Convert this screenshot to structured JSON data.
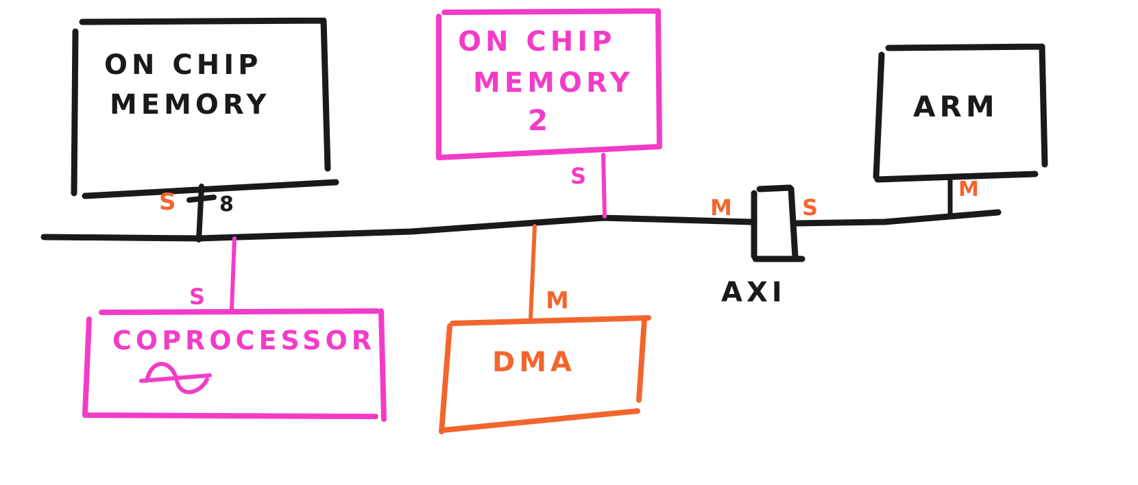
{
  "colors": {
    "black": "#1a1a1a",
    "pink": "#f23cc8",
    "orange": "#f2662e"
  },
  "blocks": {
    "onchip_memory": {
      "line1": "ON CHIP",
      "line2": "MEMORY"
    },
    "onchip_memory2": {
      "line1": "ON CHIP",
      "line2": "MEMORY",
      "line3": "2"
    },
    "arm": {
      "label": "ARM"
    },
    "coprocessor": {
      "label": "COPROCESSOR",
      "icon": "sine-wave-icon"
    },
    "dma": {
      "label": "DMA"
    },
    "axi": {
      "label": "AXI"
    }
  },
  "ports": {
    "memory_slave": "S",
    "memory_width": "8",
    "memory2_slave": "S",
    "coprocessor_slave": "S",
    "dma_master": "M",
    "axi_master": "M",
    "axi_slave": "S",
    "arm_master": "M"
  }
}
